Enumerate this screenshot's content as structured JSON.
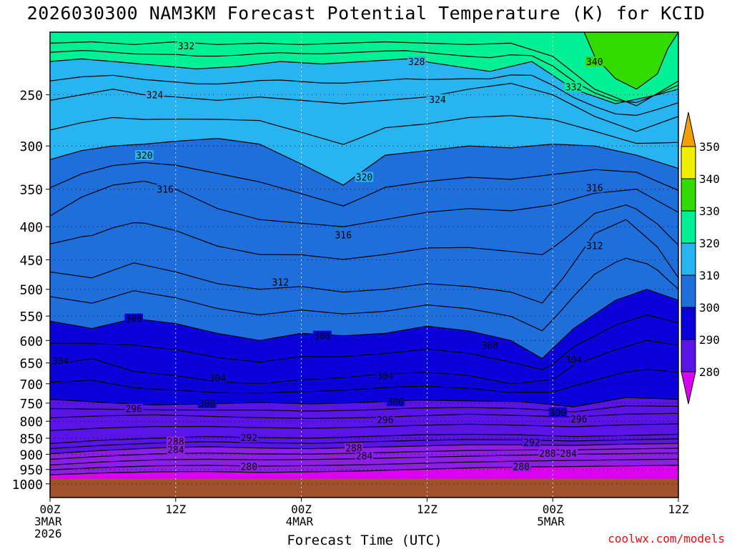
{
  "title": "2026030300 NAM3KM Forecast Potential Temperature (K) for KCID",
  "credit": "coolwx.com/models",
  "chart_data": {
    "type": "contour",
    "title": "2026030300 NAM3KM Forecast Potential Temperature (K) for KCID",
    "xlabel": "Forecast Time (UTC)",
    "ylabel": "",
    "units": "K",
    "x_range_hours": [
      0,
      60
    ],
    "y_range_hpa": [
      200,
      1050
    ],
    "y_scale": "log-pressure",
    "grid": true,
    "y_ticks": [
      250,
      300,
      350,
      400,
      450,
      500,
      550,
      600,
      650,
      700,
      750,
      800,
      850,
      900,
      950,
      1000
    ],
    "x_ticks": [
      {
        "hour": 0,
        "lines": [
          "00Z",
          "3MAR",
          "2026"
        ]
      },
      {
        "hour": 12,
        "lines": [
          "12Z"
        ]
      },
      {
        "hour": 24,
        "lines": [
          "00Z",
          "4MAR"
        ]
      },
      {
        "hour": 36,
        "lines": [
          "12Z"
        ]
      },
      {
        "hour": 48,
        "lines": [
          "00Z",
          "5MAR"
        ]
      },
      {
        "hour": 60,
        "lines": [
          "12Z"
        ]
      }
    ],
    "legend": {
      "placement": "right",
      "levels": [
        280,
        290,
        300,
        310,
        320,
        330,
        340,
        350
      ],
      "colors": [
        "#dc00f0",
        "#8c1ee6",
        "#5a14e6",
        "#0a00dc",
        "#1e6edc",
        "#28b4f0",
        "#00f096",
        "#32dc00",
        "#eef000",
        "#f0a000"
      ],
      "extend": "both"
    },
    "ground_color": "#a0522d",
    "isentropes": [
      {
        "theta": 280,
        "points": [
          [
            0,
            968
          ],
          [
            5,
            962
          ],
          [
            10,
            958
          ],
          [
            15,
            957
          ],
          [
            20,
            960
          ],
          [
            25,
            958
          ],
          [
            30,
            955
          ],
          [
            35,
            950
          ],
          [
            40,
            945
          ],
          [
            45,
            942
          ],
          [
            50,
            940
          ],
          [
            55,
            938
          ],
          [
            60,
            936
          ]
        ]
      },
      {
        "theta": 284,
        "points": [
          [
            0,
            935
          ],
          [
            5,
            925
          ],
          [
            10,
            918
          ],
          [
            15,
            916
          ],
          [
            20,
            918
          ],
          [
            25,
            917
          ],
          [
            30,
            914
          ],
          [
            35,
            910
          ],
          [
            40,
            906
          ],
          [
            45,
            903
          ],
          [
            50,
            900
          ],
          [
            55,
            898
          ],
          [
            60,
            896
          ]
        ]
      },
      {
        "theta": 288,
        "points": [
          [
            0,
            898
          ],
          [
            5,
            888
          ],
          [
            10,
            880
          ],
          [
            15,
            876
          ],
          [
            20,
            880
          ],
          [
            25,
            882
          ],
          [
            30,
            878
          ],
          [
            35,
            874
          ],
          [
            40,
            870
          ],
          [
            45,
            870
          ],
          [
            50,
            872
          ],
          [
            55,
            868
          ],
          [
            60,
            866
          ]
        ]
      },
      {
        "theta": 292,
        "points": [
          [
            0,
            866
          ],
          [
            5,
            856
          ],
          [
            10,
            850
          ],
          [
            15,
            845
          ],
          [
            20,
            848
          ],
          [
            25,
            850
          ],
          [
            30,
            845
          ],
          [
            35,
            840
          ],
          [
            40,
            838
          ],
          [
            45,
            840
          ],
          [
            50,
            845
          ],
          [
            55,
            842
          ],
          [
            60,
            838
          ]
        ]
      },
      {
        "theta": 296,
        "points": [
          [
            0,
            790
          ],
          [
            5,
            785
          ],
          [
            10,
            782
          ],
          [
            15,
            786
          ],
          [
            20,
            790
          ],
          [
            25,
            792
          ],
          [
            30,
            790
          ],
          [
            35,
            785
          ],
          [
            40,
            780
          ],
          [
            45,
            784
          ],
          [
            50,
            788
          ],
          [
            55,
            780
          ],
          [
            60,
            778
          ]
        ]
      },
      {
        "theta": 300,
        "points": [
          [
            0,
            740
          ],
          [
            5,
            748
          ],
          [
            10,
            755
          ],
          [
            15,
            752
          ],
          [
            20,
            748
          ],
          [
            25,
            752
          ],
          [
            30,
            748
          ],
          [
            35,
            742
          ],
          [
            40,
            744
          ],
          [
            45,
            746
          ],
          [
            50,
            760
          ],
          [
            55,
            735
          ],
          [
            60,
            740
          ]
        ]
      },
      {
        "theta": 304,
        "points": [
          [
            0,
            655
          ],
          [
            4,
            640
          ],
          [
            8,
            670
          ],
          [
            12,
            680
          ],
          [
            16,
            695
          ],
          [
            20,
            700
          ],
          [
            24,
            690
          ],
          [
            28,
            685
          ],
          [
            32,
            675
          ],
          [
            36,
            672
          ],
          [
            40,
            680
          ],
          [
            44,
            700
          ],
          [
            48,
            690
          ],
          [
            50,
            655
          ],
          [
            54,
            620
          ],
          [
            57,
            600
          ],
          [
            60,
            610
          ]
        ]
      },
      {
        "theta": 308,
        "points": [
          [
            0,
            560
          ],
          [
            4,
            575
          ],
          [
            8,
            555
          ],
          [
            12,
            565
          ],
          [
            16,
            585
          ],
          [
            20,
            600
          ],
          [
            24,
            585
          ],
          [
            28,
            590
          ],
          [
            32,
            585
          ],
          [
            36,
            570
          ],
          [
            40,
            580
          ],
          [
            44,
            600
          ],
          [
            47,
            640
          ],
          [
            50,
            575
          ],
          [
            54,
            520
          ],
          [
            57,
            500
          ],
          [
            60,
            520
          ]
        ]
      },
      {
        "theta": 312,
        "points": [
          [
            0,
            470
          ],
          [
            4,
            480
          ],
          [
            8,
            455
          ],
          [
            12,
            470
          ],
          [
            16,
            490
          ],
          [
            20,
            500
          ],
          [
            24,
            495
          ],
          [
            28,
            505
          ],
          [
            32,
            500
          ],
          [
            36,
            490
          ],
          [
            40,
            495
          ],
          [
            44,
            505
          ],
          [
            47,
            525
          ],
          [
            49,
            480
          ],
          [
            52,
            410
          ],
          [
            55,
            390
          ],
          [
            58,
            430
          ],
          [
            60,
            480
          ]
        ]
      },
      {
        "theta": 316,
        "points": [
          [
            0,
            385
          ],
          [
            3,
            360
          ],
          [
            6,
            345
          ],
          [
            9,
            340
          ],
          [
            12,
            350
          ],
          [
            16,
            375
          ],
          [
            20,
            390
          ],
          [
            24,
            395
          ],
          [
            28,
            400
          ],
          [
            32,
            390
          ],
          [
            36,
            380
          ],
          [
            40,
            375
          ],
          [
            44,
            378
          ],
          [
            48,
            370
          ],
          [
            52,
            355
          ],
          [
            56,
            350
          ],
          [
            60,
            380
          ]
        ]
      },
      {
        "theta": 320,
        "points": [
          [
            0,
            315
          ],
          [
            3,
            305
          ],
          [
            6,
            300
          ],
          [
            9,
            298
          ],
          [
            12,
            295
          ],
          [
            16,
            292
          ],
          [
            20,
            298
          ],
          [
            24,
            320
          ],
          [
            28,
            345
          ],
          [
            32,
            310
          ],
          [
            36,
            305
          ],
          [
            40,
            300
          ],
          [
            44,
            302
          ],
          [
            48,
            298
          ],
          [
            52,
            300
          ],
          [
            56,
            310
          ],
          [
            60,
            325
          ]
        ]
      },
      {
        "theta": 324,
        "points": [
          [
            0,
            255
          ],
          [
            3,
            250
          ],
          [
            6,
            245
          ],
          [
            9,
            250
          ],
          [
            12,
            252
          ],
          [
            16,
            255
          ],
          [
            20,
            252
          ],
          [
            24,
            255
          ],
          [
            28,
            258
          ],
          [
            32,
            255
          ],
          [
            36,
            252
          ],
          [
            40,
            245
          ],
          [
            44,
            240
          ],
          [
            48,
            250
          ],
          [
            52,
            270
          ],
          [
            56,
            285
          ],
          [
            60,
            270
          ]
        ]
      },
      {
        "theta": 328,
        "points": [
          [
            0,
            222
          ],
          [
            3,
            220
          ],
          [
            6,
            222
          ],
          [
            10,
            225
          ],
          [
            14,
            228
          ],
          [
            18,
            226
          ],
          [
            22,
            222
          ],
          [
            26,
            224
          ],
          [
            30,
            222
          ],
          [
            34,
            220
          ],
          [
            38,
            225
          ],
          [
            42,
            230
          ],
          [
            46,
            222
          ],
          [
            50,
            245
          ],
          [
            54,
            258
          ],
          [
            58,
            250
          ],
          [
            60,
            245
          ]
        ]
      },
      {
        "theta": 332,
        "points": [
          [
            0,
            208
          ],
          [
            4,
            207
          ],
          [
            8,
            209
          ],
          [
            12,
            207
          ],
          [
            16,
            209
          ],
          [
            20,
            208
          ],
          [
            24,
            209
          ],
          [
            28,
            208
          ],
          [
            32,
            207
          ],
          [
            36,
            208
          ],
          [
            40,
            209
          ],
          [
            44,
            208
          ],
          [
            48,
            218
          ],
          [
            52,
            245
          ],
          [
            56,
            260
          ],
          [
            60,
            238
          ]
        ]
      },
      {
        "theta": 340,
        "points": [
          [
            51,
            200
          ],
          [
            52,
            218
          ],
          [
            54,
            236
          ],
          [
            56,
            245
          ],
          [
            58,
            232
          ],
          [
            59,
            212
          ],
          [
            60,
            200
          ]
        ]
      }
    ],
    "labels": [
      {
        "text": "332",
        "hour": 13,
        "hpa": 210
      },
      {
        "text": "328",
        "hour": 35,
        "hpa": 222
      },
      {
        "text": "340",
        "hour": 52,
        "hpa": 222
      },
      {
        "text": "324",
        "hour": 10,
        "hpa": 250
      },
      {
        "text": "324",
        "hour": 37,
        "hpa": 254
      },
      {
        "text": "332",
        "hour": 50,
        "hpa": 243
      },
      {
        "text": "320",
        "hour": 9,
        "hpa": 310
      },
      {
        "text": "320",
        "hour": 30,
        "hpa": 335
      },
      {
        "text": "316",
        "hour": 11,
        "hpa": 350
      },
      {
        "text": "316",
        "hour": 52,
        "hpa": 348
      },
      {
        "text": "316",
        "hour": 28,
        "hpa": 412
      },
      {
        "text": "312",
        "hour": 52,
        "hpa": 428
      },
      {
        "text": "312",
        "hour": 22,
        "hpa": 487
      },
      {
        "text": "308",
        "hour": 8,
        "hpa": 555
      },
      {
        "text": "308",
        "hour": 26,
        "hpa": 590
      },
      {
        "text": "308",
        "hour": 42,
        "hpa": 610
      },
      {
        "text": "304",
        "hour": 1,
        "hpa": 645
      },
      {
        "text": "304",
        "hour": 16,
        "hpa": 685
      },
      {
        "text": "304",
        "hour": 32,
        "hpa": 680
      },
      {
        "text": "304",
        "hour": 50,
        "hpa": 642
      },
      {
        "text": "300",
        "hour": 15,
        "hpa": 750
      },
      {
        "text": "300",
        "hour": 33,
        "hpa": 745
      },
      {
        "text": "300",
        "hour": 48.5,
        "hpa": 775
      },
      {
        "text": "296",
        "hour": 8,
        "hpa": 765
      },
      {
        "text": "296",
        "hour": 32,
        "hpa": 795
      },
      {
        "text": "296",
        "hour": 50.5,
        "hpa": 793
      },
      {
        "text": "292",
        "hour": 19,
        "hpa": 848
      },
      {
        "text": "292",
        "hour": 46,
        "hpa": 862
      },
      {
        "text": "288",
        "hour": 12,
        "hpa": 860
      },
      {
        "text": "288",
        "hour": 29,
        "hpa": 880
      },
      {
        "text": "288",
        "hour": 47.5,
        "hpa": 897
      },
      {
        "text": "284",
        "hour": 12,
        "hpa": 885
      },
      {
        "text": "284",
        "hour": 30,
        "hpa": 905
      },
      {
        "text": "284",
        "hour": 49.5,
        "hpa": 897
      },
      {
        "text": "280",
        "hour": 19,
        "hpa": 940
      },
      {
        "text": "280",
        "hour": 45,
        "hpa": 940
      }
    ]
  }
}
